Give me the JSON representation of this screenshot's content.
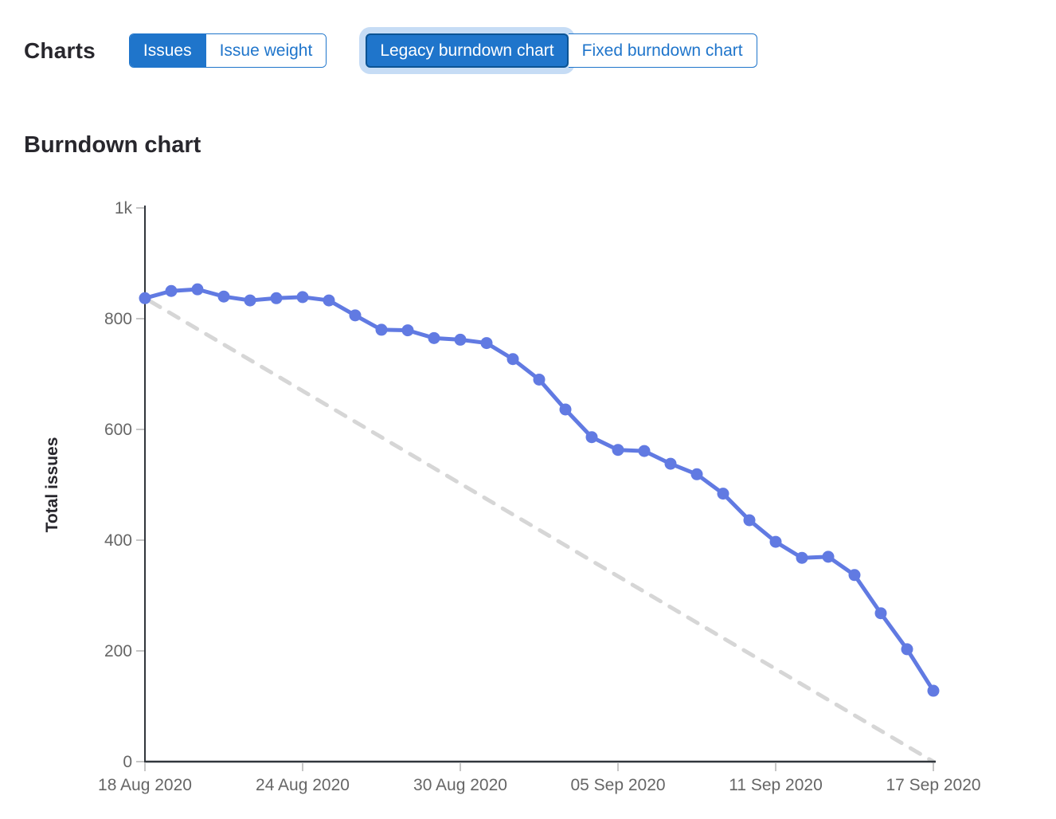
{
  "toolbar": {
    "title": "Charts",
    "issue_toggle": [
      {
        "label": "Issues",
        "selected": true
      },
      {
        "label": "Issue weight",
        "selected": false
      }
    ],
    "burndown_toggle": [
      {
        "label": "Legacy burndown chart",
        "selected": true,
        "focused": true
      },
      {
        "label": "Fixed burndown chart",
        "selected": false
      }
    ]
  },
  "section": {
    "title": "Burndown chart"
  },
  "colors": {
    "accent_blue": "#1f75cb",
    "selected_border": "#0b5394",
    "focus_ring": "#c6dcf5",
    "line_blue": "#617ae2",
    "guideline_gray": "#d6d6d6",
    "axis_dark": "#31363c",
    "tick_gray": "#c6c6c6",
    "label_gray": "#666666",
    "text_dark": "#28272d"
  },
  "chart_data": {
    "type": "line",
    "title": "Burndown chart",
    "xlabel": "",
    "ylabel": "Total issues",
    "ylim": [
      0,
      1000
    ],
    "grid": false,
    "legend_position": "none",
    "num_points": 31,
    "y_ticks": [
      {
        "v": 0,
        "label": "0"
      },
      {
        "v": 200,
        "label": "200"
      },
      {
        "v": 400,
        "label": "400"
      },
      {
        "v": 600,
        "label": "600"
      },
      {
        "v": 800,
        "label": "800"
      },
      {
        "v": 1000,
        "label": "1k"
      }
    ],
    "x_ticks": [
      {
        "i": 0,
        "label": "18 Aug 2020"
      },
      {
        "i": 6,
        "label": "24 Aug 2020"
      },
      {
        "i": 12,
        "label": "30 Aug 2020"
      },
      {
        "i": 18,
        "label": "05 Sep 2020"
      },
      {
        "i": 24,
        "label": "11 Sep 2020"
      },
      {
        "i": 30,
        "label": "17 Sep 2020"
      }
    ],
    "series": [
      {
        "name": "Total issues remaining",
        "type": "line-with-points",
        "color": "#617ae2",
        "values": [
          837,
          850,
          853,
          840,
          833,
          837,
          839,
          833,
          806,
          780,
          779,
          765,
          762,
          756,
          727,
          690,
          636,
          586,
          563,
          561,
          538,
          519,
          484,
          436,
          397,
          368,
          370,
          337,
          268,
          203,
          128
        ]
      },
      {
        "name": "Guideline",
        "type": "dashed-line",
        "color": "#d6d6d6",
        "endpoint_values": [
          837,
          0
        ]
      }
    ]
  }
}
